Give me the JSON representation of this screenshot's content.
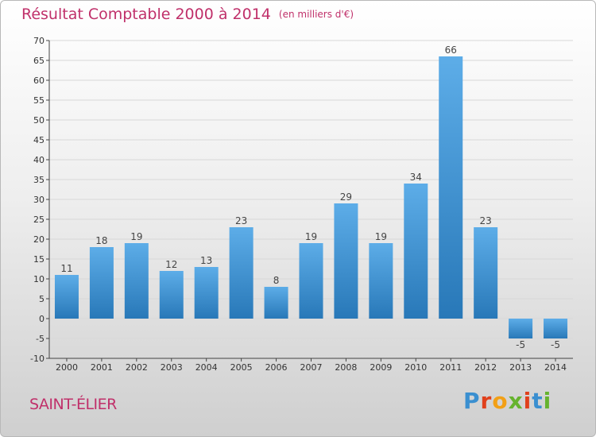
{
  "title": "Résultat Comptable 2000 à 2014",
  "subtitle": "(en milliers d'€)",
  "commune": "SAINT-ÉLIER",
  "logo": {
    "letters": [
      "P",
      "r",
      "o",
      "x",
      "i",
      "t",
      "i"
    ],
    "colors": [
      "#3a8fd0",
      "#e0401c",
      "#f2a016",
      "#66b32e",
      "#e0401c",
      "#3a8fd0",
      "#66b32e"
    ]
  },
  "colors": {
    "title": "#c0306a",
    "bar_top": "#5dade8",
    "bar_bottom": "#2878b8",
    "grid": "#d8d8d8",
    "axis": "#444444"
  },
  "chart_data": {
    "type": "bar",
    "categories": [
      "2000",
      "2001",
      "2002",
      "2003",
      "2004",
      "2005",
      "2006",
      "2007",
      "2008",
      "2009",
      "2010",
      "2011",
      "2012",
      "2013",
      "2014"
    ],
    "values": [
      11,
      18,
      19,
      12,
      13,
      23,
      8,
      19,
      29,
      19,
      34,
      66,
      23,
      -5,
      -5
    ],
    "data_labels": [
      "11",
      "18",
      "19",
      "12",
      "13",
      "23",
      "8",
      "19",
      "29",
      "19",
      "34",
      "66",
      "23",
      "-5",
      "-5"
    ],
    "ylim": [
      -10,
      70
    ],
    "yticks": [
      -10,
      -5,
      0,
      5,
      10,
      15,
      20,
      25,
      30,
      35,
      40,
      45,
      50,
      55,
      60,
      65,
      70
    ],
    "grid": true
  }
}
